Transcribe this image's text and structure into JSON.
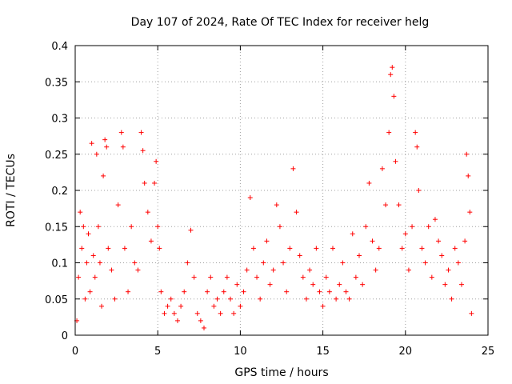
{
  "chart_data": {
    "type": "scatter",
    "title": "Day 107 of 2024, Rate Of TEC Index for receiver helg",
    "xlabel": "GPS time / hours",
    "ylabel": "ROTI / TECUs",
    "xlim": [
      0,
      25
    ],
    "ylim": [
      0,
      0.4
    ],
    "grid": true,
    "marker": "+",
    "series_color": "#ff0000",
    "x_ticks": [
      0,
      5,
      10,
      15,
      20,
      25
    ],
    "x_tick_labels": [
      "0",
      "5",
      "10",
      "15",
      "20",
      "25"
    ],
    "y_ticks": [
      0,
      0.05,
      0.1,
      0.15,
      0.2,
      0.25,
      0.3,
      0.35,
      0.4
    ],
    "y_tick_labels": [
      "0",
      "0.05",
      "0.1",
      "0.15",
      "0.2",
      "0.25",
      "0.3",
      "0.35",
      "0.4"
    ],
    "series": [
      {
        "name": "ROTI",
        "points": [
          [
            0.1,
            0.02
          ],
          [
            0.2,
            0.08
          ],
          [
            0.3,
            0.17
          ],
          [
            0.4,
            0.12
          ],
          [
            0.5,
            0.15
          ],
          [
            0.6,
            0.05
          ],
          [
            0.7,
            0.1
          ],
          [
            0.8,
            0.14
          ],
          [
            0.9,
            0.06
          ],
          [
            1.0,
            0.265
          ],
          [
            1.1,
            0.11
          ],
          [
            1.2,
            0.08
          ],
          [
            1.3,
            0.25
          ],
          [
            1.4,
            0.15
          ],
          [
            1.5,
            0.1
          ],
          [
            1.6,
            0.04
          ],
          [
            1.7,
            0.22
          ],
          [
            1.8,
            0.27
          ],
          [
            1.9,
            0.26
          ],
          [
            2.0,
            0.12
          ],
          [
            2.2,
            0.09
          ],
          [
            2.4,
            0.05
          ],
          [
            2.6,
            0.18
          ],
          [
            2.8,
            0.28
          ],
          [
            2.9,
            0.26
          ],
          [
            3.0,
            0.12
          ],
          [
            3.2,
            0.06
          ],
          [
            3.4,
            0.15
          ],
          [
            3.6,
            0.1
          ],
          [
            3.8,
            0.09
          ],
          [
            4.0,
            0.28
          ],
          [
            4.1,
            0.255
          ],
          [
            4.2,
            0.21
          ],
          [
            4.4,
            0.17
          ],
          [
            4.6,
            0.13
          ],
          [
            4.8,
            0.21
          ],
          [
            4.9,
            0.24
          ],
          [
            5.0,
            0.15
          ],
          [
            5.1,
            0.12
          ],
          [
            5.2,
            0.06
          ],
          [
            5.4,
            0.03
          ],
          [
            5.6,
            0.04
          ],
          [
            5.8,
            0.05
          ],
          [
            6.0,
            0.03
          ],
          [
            6.2,
            0.02
          ],
          [
            6.4,
            0.04
          ],
          [
            6.6,
            0.06
          ],
          [
            6.8,
            0.1
          ],
          [
            7.0,
            0.145
          ],
          [
            7.2,
            0.08
          ],
          [
            7.4,
            0.03
          ],
          [
            7.6,
            0.02
          ],
          [
            7.8,
            0.01
          ],
          [
            8.0,
            0.06
          ],
          [
            8.2,
            0.08
          ],
          [
            8.4,
            0.04
          ],
          [
            8.6,
            0.05
          ],
          [
            8.8,
            0.03
          ],
          [
            9.0,
            0.06
          ],
          [
            9.2,
            0.08
          ],
          [
            9.4,
            0.05
          ],
          [
            9.6,
            0.03
          ],
          [
            9.8,
            0.07
          ],
          [
            10.0,
            0.04
          ],
          [
            10.2,
            0.06
          ],
          [
            10.4,
            0.09
          ],
          [
            10.6,
            0.19
          ],
          [
            10.8,
            0.12
          ],
          [
            11.0,
            0.08
          ],
          [
            11.2,
            0.05
          ],
          [
            11.4,
            0.1
          ],
          [
            11.6,
            0.13
          ],
          [
            11.8,
            0.07
          ],
          [
            12.0,
            0.09
          ],
          [
            12.2,
            0.18
          ],
          [
            12.4,
            0.15
          ],
          [
            12.6,
            0.1
          ],
          [
            12.8,
            0.06
          ],
          [
            13.0,
            0.12
          ],
          [
            13.2,
            0.23
          ],
          [
            13.4,
            0.17
          ],
          [
            13.6,
            0.11
          ],
          [
            13.8,
            0.08
          ],
          [
            14.0,
            0.05
          ],
          [
            14.2,
            0.09
          ],
          [
            14.4,
            0.07
          ],
          [
            14.6,
            0.12
          ],
          [
            14.8,
            0.06
          ],
          [
            15.0,
            0.04
          ],
          [
            15.2,
            0.08
          ],
          [
            15.4,
            0.06
          ],
          [
            15.6,
            0.12
          ],
          [
            15.8,
            0.05
          ],
          [
            16.0,
            0.07
          ],
          [
            16.2,
            0.1
          ],
          [
            16.4,
            0.06
          ],
          [
            16.6,
            0.05
          ],
          [
            16.8,
            0.14
          ],
          [
            17.0,
            0.08
          ],
          [
            17.2,
            0.11
          ],
          [
            17.4,
            0.07
          ],
          [
            17.6,
            0.15
          ],
          [
            17.8,
            0.21
          ],
          [
            18.0,
            0.13
          ],
          [
            18.2,
            0.09
          ],
          [
            18.4,
            0.12
          ],
          [
            18.6,
            0.23
          ],
          [
            18.8,
            0.18
          ],
          [
            19.0,
            0.28
          ],
          [
            19.1,
            0.36
          ],
          [
            19.2,
            0.37
          ],
          [
            19.3,
            0.33
          ],
          [
            19.4,
            0.24
          ],
          [
            19.6,
            0.18
          ],
          [
            19.8,
            0.12
          ],
          [
            20.0,
            0.14
          ],
          [
            20.2,
            0.09
          ],
          [
            20.4,
            0.15
          ],
          [
            20.6,
            0.28
          ],
          [
            20.7,
            0.26
          ],
          [
            20.8,
            0.2
          ],
          [
            21.0,
            0.12
          ],
          [
            21.2,
            0.1
          ],
          [
            21.4,
            0.15
          ],
          [
            21.6,
            0.08
          ],
          [
            21.8,
            0.16
          ],
          [
            22.0,
            0.13
          ],
          [
            22.2,
            0.11
          ],
          [
            22.4,
            0.07
          ],
          [
            22.6,
            0.09
          ],
          [
            22.8,
            0.05
          ],
          [
            23.0,
            0.12
          ],
          [
            23.2,
            0.1
          ],
          [
            23.4,
            0.07
          ],
          [
            23.6,
            0.13
          ],
          [
            23.7,
            0.25
          ],
          [
            23.8,
            0.22
          ],
          [
            23.9,
            0.17
          ],
          [
            24.0,
            0.03
          ]
        ]
      }
    ]
  }
}
